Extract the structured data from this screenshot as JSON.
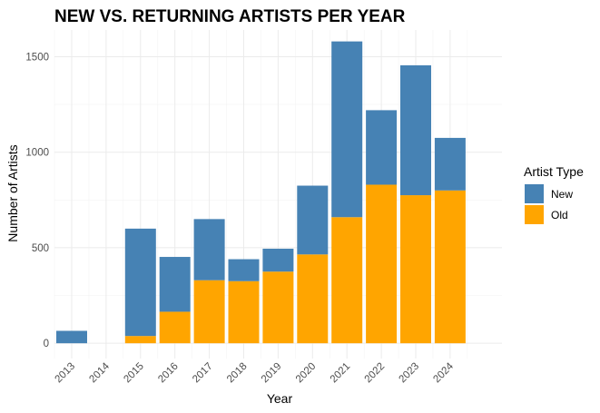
{
  "chart_data": {
    "type": "bar",
    "stacked": true,
    "title": "NEW VS. RETURNING ARTISTS PER YEAR",
    "xlabel": "Year",
    "ylabel": "Number of Artists",
    "categories": [
      "2013",
      "2014",
      "2015",
      "2016",
      "2017",
      "2018",
      "2019",
      "2020",
      "2021",
      "2022",
      "2023",
      "2024"
    ],
    "series": [
      {
        "name": "Old",
        "color": "#FFA500",
        "values": [
          0,
          0,
          38,
          165,
          330,
          325,
          375,
          465,
          660,
          830,
          775,
          800
        ]
      },
      {
        "name": "New",
        "color": "#4682B4",
        "values": [
          65,
          0,
          562,
          287,
          320,
          115,
          120,
          360,
          920,
          390,
          680,
          275
        ]
      }
    ],
    "ylim": [
      -80,
      1640
    ],
    "yticks": [
      0,
      500,
      1000,
      1500
    ],
    "grid": true,
    "legend": {
      "title": "Artist Type",
      "position": "right",
      "entries": [
        {
          "name": "New",
          "color": "#4682B4"
        },
        {
          "name": "Old",
          "color": "#FFA500"
        }
      ]
    }
  }
}
